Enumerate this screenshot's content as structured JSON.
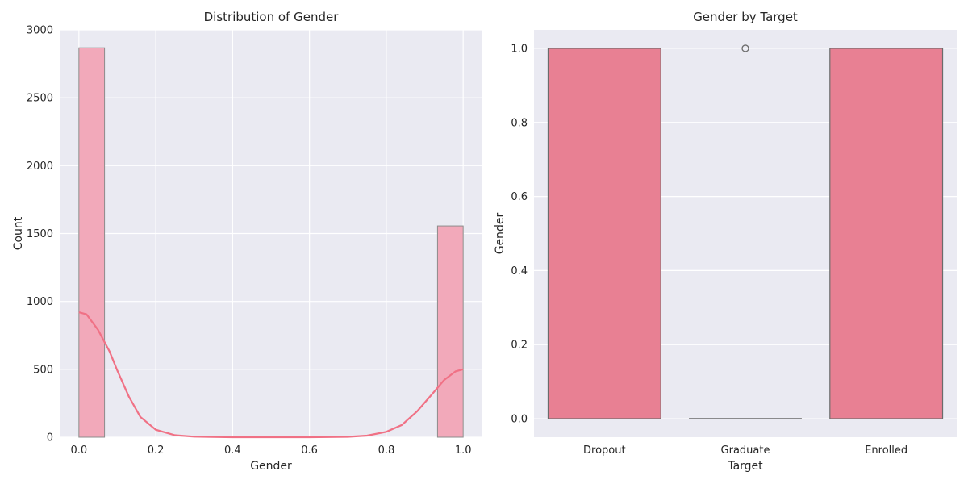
{
  "chart_data": [
    {
      "type": "bar",
      "title": "Distribution of Gender",
      "xlabel": "Gender",
      "ylabel": "Count",
      "xlim": [
        -0.05,
        1.05
      ],
      "ylim": [
        0,
        3000
      ],
      "xticks": [
        "0.0",
        "0.2",
        "0.4",
        "0.6",
        "0.8",
        "1.0"
      ],
      "yticks": [
        "0",
        "500",
        "1000",
        "1500",
        "2000",
        "2500",
        "3000"
      ],
      "bins": [
        {
          "x0": 0.0,
          "x1": 0.0667,
          "count": 2868
        },
        {
          "x0": 0.9333,
          "x1": 1.0,
          "count": 1556
        }
      ],
      "kde": [
        {
          "x": 0.0,
          "y": 920
        },
        {
          "x": 0.02,
          "y": 905
        },
        {
          "x": 0.05,
          "y": 790
        },
        {
          "x": 0.08,
          "y": 630
        },
        {
          "x": 0.1,
          "y": 490
        },
        {
          "x": 0.13,
          "y": 300
        },
        {
          "x": 0.16,
          "y": 150
        },
        {
          "x": 0.2,
          "y": 55
        },
        {
          "x": 0.25,
          "y": 15
        },
        {
          "x": 0.3,
          "y": 4
        },
        {
          "x": 0.4,
          "y": 0
        },
        {
          "x": 0.6,
          "y": 0
        },
        {
          "x": 0.7,
          "y": 3
        },
        {
          "x": 0.75,
          "y": 12
        },
        {
          "x": 0.8,
          "y": 40
        },
        {
          "x": 0.84,
          "y": 90
        },
        {
          "x": 0.88,
          "y": 190
        },
        {
          "x": 0.92,
          "y": 320
        },
        {
          "x": 0.95,
          "y": 420
        },
        {
          "x": 0.98,
          "y": 485
        },
        {
          "x": 1.0,
          "y": 500
        }
      ],
      "grid": true,
      "colors": {
        "bar": "#f2a9ba",
        "bar_edge": "#8c8c8c",
        "line": "#f07185",
        "background": "#eaeaf2",
        "grid": "#ffffff"
      }
    },
    {
      "type": "box",
      "title": "Gender by Target",
      "xlabel": "Target",
      "ylabel": "Gender",
      "categories": [
        "Dropout",
        "Graduate",
        "Enrolled"
      ],
      "ylim": [
        -0.05,
        1.05
      ],
      "yticks": [
        "0.0",
        "0.2",
        "0.4",
        "0.6",
        "0.8",
        "1.0"
      ],
      "boxes": [
        {
          "category": "Dropout",
          "q1": 0,
          "median": 0,
          "q3": 1,
          "whisker_low": 0,
          "whisker_high": 1,
          "outliers": []
        },
        {
          "category": "Graduate",
          "q1": 0,
          "median": 0,
          "q3": 0,
          "whisker_low": 0,
          "whisker_high": 0,
          "outliers": [
            1
          ]
        },
        {
          "category": "Enrolled",
          "q1": 0,
          "median": 0,
          "q3": 1,
          "whisker_low": 0,
          "whisker_high": 1,
          "outliers": []
        }
      ],
      "grid": true,
      "colors": {
        "box": "#e88093",
        "box_edge": "#6b6b6b",
        "background": "#eaeaf2",
        "grid": "#ffffff"
      }
    }
  ]
}
